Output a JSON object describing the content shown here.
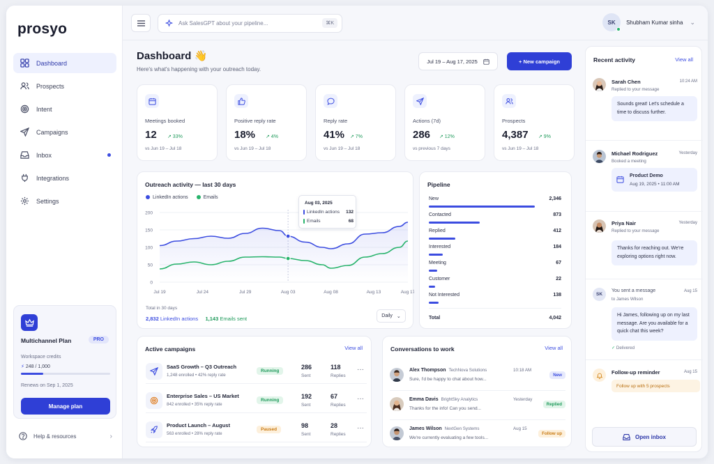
{
  "app": {
    "logo": "prosyo"
  },
  "sidebar": {
    "items": [
      {
        "label": "Dashboard"
      },
      {
        "label": "Prospects"
      },
      {
        "label": "Intent"
      },
      {
        "label": "Campaigns"
      },
      {
        "label": "Inbox"
      },
      {
        "label": "Integrations"
      },
      {
        "label": "Settings"
      }
    ],
    "plan": {
      "name": "Multichannel Plan",
      "badge": "PRO",
      "credits_label": "Workspace credits",
      "credits": "248 / 1,000",
      "credits_used_fraction": 0.248,
      "renews": "Renews on Sep 1, 2025",
      "manage_label": "Manage plan"
    },
    "help_label": "Help & resources"
  },
  "topbar": {
    "search_placeholder": "Ask SalesGPT about your pipeline...",
    "search_shortcut": "⌘K",
    "user_initials": "SK",
    "user_name": "Shubham Kumar sinha"
  },
  "header": {
    "title": "Dashboard 👋",
    "subtitle": "Here's what's happening with your outreach today.",
    "date_range": "Jul 19 – Aug 17, 2025",
    "new_campaign_label": "+ New campaign"
  },
  "metrics": [
    {
      "label": "Meetings booked",
      "value": "12",
      "change": "↗ 33%",
      "sub": "vs Jun 19 – Jul 18"
    },
    {
      "label": "Positive reply rate",
      "value": "18%",
      "change": "↗ 4%",
      "sub": "vs Jun 19 – Jul 18"
    },
    {
      "label": "Reply rate",
      "value": "41%",
      "change": "↗ 7%",
      "sub": "vs Jun 19 – Jul 18"
    },
    {
      "label": "Actions (7d)",
      "value": "286",
      "change": "↗ 12%",
      "sub": "vs previous 7 days"
    },
    {
      "label": "Prospects",
      "value": "4,387",
      "change": "↗ 9%",
      "sub": "vs Jun 19 – Jul 18"
    }
  ],
  "outreach": {
    "title": "Outreach activity — last 30 days",
    "legend_linkedin": "LinkedIn actions",
    "legend_emails": "Emails",
    "tooltip": {
      "date": "Aug 03, 2025",
      "linkedin_label": "LinkedIn actions",
      "linkedin_value": "132",
      "emails_label": "Emails",
      "emails_value": "68"
    },
    "total_label": "Total in 30 days",
    "total_linkedin_value": "2,832",
    "total_linkedin_label": "LinkedIn actions",
    "total_emails_value": "1,143",
    "total_emails_label": "Emails sent",
    "interval_label": "Daily"
  },
  "chart_data": {
    "type": "area",
    "x": [
      "Jul 19",
      "Jul 24",
      "Jul 29",
      "Aug 03",
      "Aug 08",
      "Aug 13",
      "Aug 17"
    ],
    "y_ticks": [
      0,
      50,
      100,
      150,
      200
    ],
    "ylim": [
      0,
      200
    ],
    "series": [
      {
        "name": "LinkedIn actions",
        "color": "#3b4ce0",
        "points": [
          [
            0,
            105
          ],
          [
            2,
            118
          ],
          [
            4,
            125
          ],
          [
            6,
            132
          ],
          [
            8,
            126
          ],
          [
            10,
            140
          ],
          [
            12,
            155
          ],
          [
            14,
            148
          ],
          [
            15,
            132
          ],
          [
            17,
            115
          ],
          [
            19,
            100
          ],
          [
            20,
            96
          ],
          [
            22,
            110
          ],
          [
            24,
            138
          ],
          [
            26,
            142
          ],
          [
            28,
            160
          ],
          [
            29,
            172
          ]
        ]
      },
      {
        "name": "Emails",
        "color": "#27b36b",
        "points": [
          [
            0,
            38
          ],
          [
            2,
            52
          ],
          [
            4,
            58
          ],
          [
            6,
            50
          ],
          [
            8,
            60
          ],
          [
            10,
            72
          ],
          [
            12,
            73
          ],
          [
            14,
            72
          ],
          [
            15,
            68
          ],
          [
            17,
            62
          ],
          [
            19,
            50
          ],
          [
            20,
            40
          ],
          [
            22,
            48
          ],
          [
            24,
            72
          ],
          [
            26,
            82
          ],
          [
            28,
            100
          ],
          [
            29,
            118
          ]
        ]
      }
    ],
    "highlight": {
      "x_index": 15,
      "linkedin": 132,
      "emails": 68
    }
  },
  "pipeline": {
    "title": "Pipeline",
    "rows": [
      {
        "name": "New",
        "value": "2,346",
        "ratio": 1.0
      },
      {
        "name": "Contacted",
        "value": "873",
        "ratio": 0.48
      },
      {
        "name": "Replied",
        "value": "412",
        "ratio": 0.25
      },
      {
        "name": "Interested",
        "value": "184",
        "ratio": 0.13
      },
      {
        "name": "Meeting",
        "value": "67",
        "ratio": 0.08
      },
      {
        "name": "Customer",
        "value": "22",
        "ratio": 0.06
      },
      {
        "name": "Not Interested",
        "value": "138",
        "ratio": 0.09
      }
    ],
    "total_label": "Total",
    "total_value": "4,042"
  },
  "campaigns": {
    "title": "Active campaigns",
    "view_all": "View all",
    "sent_label": "Sent",
    "replies_label": "Replies",
    "rows": [
      {
        "name": "SaaS Growth – Q3 Outreach",
        "sub": "1,248 enrolled • 42% reply rate",
        "status": "Running",
        "sent": "286",
        "replies": "118"
      },
      {
        "name": "Enterprise Sales – US Market",
        "sub": "842 enrolled • 35% reply rate",
        "status": "Running",
        "sent": "192",
        "replies": "67"
      },
      {
        "name": "Product Launch – August",
        "sub": "563 enrolled • 28% reply rate",
        "status": "Paused",
        "sent": "98",
        "replies": "28"
      }
    ]
  },
  "conversations": {
    "title": "Conversations to work",
    "view_all": "View all",
    "rows": [
      {
        "name": "Alex Thompson",
        "company": "TechNova Solutions",
        "message": "Sure, I'd be happy to chat about how...",
        "time": "10:18 AM",
        "tag": "New"
      },
      {
        "name": "Emma Davis",
        "company": "BrightSky Analytics",
        "message": "Thanks for the info! Can you send...",
        "time": "Yesterday",
        "tag": "Replied"
      },
      {
        "name": "James Wilson",
        "company": "NextGen Systems",
        "message": "We're currently evaluating a few tools...",
        "time": "Aug 15",
        "tag": "Follow up"
      }
    ]
  },
  "activity": {
    "title": "Recent activity",
    "view_all": "View all",
    "items": [
      {
        "name": "Sarah Chen",
        "time": "10:24 AM",
        "sub": "Replied to your message",
        "bubble": "Sounds great! Let's schedule a time to discuss further."
      },
      {
        "name": "Michael Rodriguez",
        "time": "Yesterday",
        "sub": "Booked a meeting",
        "meeting_title": "Product Demo",
        "meeting_time": "Aug 19, 2025 • 11:00 AM"
      },
      {
        "name": "Priya Nair",
        "time": "Yesterday",
        "sub": "Replied to your message",
        "bubble": "Thanks for reaching out. We're exploring options right now."
      },
      {
        "initials": "SK",
        "name": "You sent a message",
        "sub": "to James Wilson",
        "time": "Aug 15",
        "bubble": "Hi James, following up on my last message. Are you available for a quick chat this week?",
        "status": "✓ Delivered"
      },
      {
        "name": "Follow-up reminder",
        "time": "Aug 15",
        "reminder": "Follow up with 5 prospects"
      }
    ],
    "open_inbox": "Open inbox"
  }
}
